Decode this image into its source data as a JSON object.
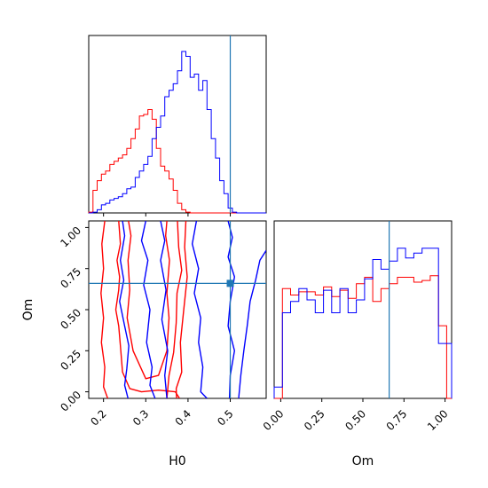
{
  "chart_data": {
    "type": "corner",
    "parameters": [
      "H0",
      "Om"
    ],
    "truth": {
      "H0": 0.5,
      "Om": 0.66
    },
    "colors": {
      "series_a": "#ff0000",
      "series_b": "#0000ff",
      "truth": "#1f77b4"
    },
    "grid": false,
    "legend": "none",
    "panels": [
      {
        "id": "hist-h0",
        "type": "histogram",
        "parameter": "H0",
        "xlim": [
          0.165,
          0.585
        ],
        "xticks": [
          0.2,
          0.3,
          0.4,
          0.5
        ],
        "show_tick_labels": false,
        "edges": [
          0.165,
          0.175,
          0.185,
          0.195,
          0.205,
          0.215,
          0.225,
          0.235,
          0.245,
          0.255,
          0.265,
          0.275,
          0.285,
          0.295,
          0.305,
          0.315,
          0.325,
          0.335,
          0.345,
          0.355,
          0.365,
          0.375,
          0.385,
          0.395,
          0.405,
          0.415,
          0.425,
          0.435,
          0.445,
          0.455,
          0.465,
          0.475,
          0.485,
          0.495,
          0.505,
          0.515,
          0.525,
          0.535,
          0.545,
          0.555,
          0.565,
          0.575,
          0.585
        ],
        "series": [
          {
            "color": "#ff0000",
            "counts": [
              0.005,
              0.14,
              0.2,
              0.24,
              0.26,
              0.3,
              0.32,
              0.34,
              0.36,
              0.4,
              0.46,
              0.52,
              0.6,
              0.61,
              0.64,
              0.58,
              0.4,
              0.29,
              0.26,
              0.21,
              0.14,
              0.06,
              0.02,
              0.005,
              0,
              0,
              0,
              0,
              0,
              0,
              0,
              0,
              0,
              0,
              0,
              0,
              0,
              0,
              0,
              0,
              0,
              0
            ]
          },
          {
            "color": "#0000ff",
            "counts": [
              0,
              0.005,
              0.02,
              0.05,
              0.06,
              0.08,
              0.09,
              0.1,
              0.12,
              0.15,
              0.16,
              0.22,
              0.26,
              0.3,
              0.35,
              0.46,
              0.53,
              0.6,
              0.72,
              0.76,
              0.8,
              0.88,
              1.0,
              0.97,
              0.84,
              0.86,
              0.76,
              0.82,
              0.64,
              0.46,
              0.34,
              0.2,
              0.12,
              0.03,
              0.005,
              0,
              0,
              0,
              0,
              0,
              0,
              0
            ]
          }
        ],
        "ymax": 1.0,
        "truth_x": 0.5
      },
      {
        "id": "contour-om-vs-h0",
        "type": "contour",
        "x_parameter": "H0",
        "y_parameter": "Om",
        "xlim": [
          0.165,
          0.585
        ],
        "ylim": [
          -0.04,
          1.04
        ],
        "xticks": [
          "0.2",
          "0.3",
          "0.4",
          "0.5"
        ],
        "yticks": [
          "0.00",
          "0.25",
          "0.50",
          "0.75",
          "1.00"
        ],
        "xlabel": "H0",
        "ylabel": "Om",
        "truth_point": [
          0.5,
          0.66
        ],
        "series": [
          {
            "color": "#ff0000",
            "contours": [
              [
                [
                  0.203,
                  1.04
                ],
                [
                  0.196,
                  0.9
                ],
                [
                  0.2,
                  0.75
                ],
                [
                  0.194,
                  0.6
                ],
                [
                  0.2,
                  0.45
                ],
                [
                  0.195,
                  0.3
                ],
                [
                  0.203,
                  0.15
                ],
                [
                  0.2,
                  0.03
                ],
                [
                  0.21,
                  -0.04
                ]
              ],
              [
                [
                  0.236,
                  1.04
                ],
                [
                  0.24,
                  0.9
                ],
                [
                  0.232,
                  0.8
                ],
                [
                  0.238,
                  0.7
                ],
                [
                  0.236,
                  0.62
                ],
                [
                  0.229,
                  0.5
                ],
                [
                  0.236,
                  0.4
                ],
                [
                  0.24,
                  0.28
                ],
                [
                  0.245,
                  0.12
                ],
                [
                  0.262,
                  0.02
                ],
                [
                  0.29,
                  0.0
                ],
                [
                  0.33,
                  0.01
                ],
                [
                  0.37,
                  0.0
                ],
                [
                  0.38,
                  -0.04
                ]
              ],
              [
                [
                  0.259,
                  1.04
                ],
                [
                  0.265,
                  0.95
                ],
                [
                  0.258,
                  0.8
                ],
                [
                  0.262,
                  0.62
                ],
                [
                  0.256,
                  0.45
                ],
                [
                  0.27,
                  0.25
                ],
                [
                  0.3,
                  0.08
                ],
                [
                  0.33,
                  0.1
                ],
                [
                  0.35,
                  0.25
                ],
                [
                  0.355,
                  0.45
                ],
                [
                  0.35,
                  0.6
                ],
                [
                  0.356,
                  0.8
                ],
                [
                  0.347,
                  0.95
                ],
                [
                  0.35,
                  1.04
                ]
              ],
              [
                [
                  0.375,
                  1.04
                ],
                [
                  0.378,
                  0.88
                ],
                [
                  0.385,
                  0.74
                ],
                [
                  0.374,
                  0.6
                ],
                [
                  0.372,
                  0.42
                ],
                [
                  0.366,
                  0.24
                ],
                [
                  0.355,
                  0.1
                ],
                [
                  0.35,
                  -0.04
                ]
              ],
              [
                [
                  0.395,
                  1.04
                ],
                [
                  0.392,
                  0.88
                ],
                [
                  0.398,
                  0.7
                ],
                [
                  0.39,
                  0.5
                ],
                [
                  0.382,
                  0.3
                ],
                [
                  0.385,
                  0.12
                ],
                [
                  0.372,
                  0.02
                ],
                [
                  0.373,
                  -0.04
                ]
              ]
            ]
          },
          {
            "color": "#0000ff",
            "contours": [
              [
                [
                  0.245,
                  1.04
                ],
                [
                  0.25,
                  0.95
                ],
                [
                  0.24,
                  0.8
                ],
                [
                  0.248,
                  0.68
                ],
                [
                  0.238,
                  0.55
                ],
                [
                  0.25,
                  0.4
                ],
                [
                  0.26,
                  0.28
                ],
                [
                  0.255,
                  0.14
                ],
                [
                  0.25,
                  0.04
                ],
                [
                  0.258,
                  -0.04
                ]
              ],
              [
                [
                  0.3,
                  1.04
                ],
                [
                  0.29,
                  0.92
                ],
                [
                  0.305,
                  0.8
                ],
                [
                  0.295,
                  0.65
                ],
                [
                  0.31,
                  0.5
                ],
                [
                  0.302,
                  0.3
                ],
                [
                  0.315,
                  0.15
                ],
                [
                  0.31,
                  0.04
                ],
                [
                  0.322,
                  -0.04
                ]
              ],
              [
                [
                  0.335,
                  1.04
                ],
                [
                  0.345,
                  0.92
                ],
                [
                  0.335,
                  0.8
                ],
                [
                  0.348,
                  0.62
                ],
                [
                  0.338,
                  0.44
                ],
                [
                  0.352,
                  0.25
                ],
                [
                  0.345,
                  0.1
                ],
                [
                  0.35,
                  -0.04
                ]
              ],
              [
                [
                  0.42,
                  1.04
                ],
                [
                  0.41,
                  0.9
                ],
                [
                  0.425,
                  0.75
                ],
                [
                  0.415,
                  0.6
                ],
                [
                  0.43,
                  0.45
                ],
                [
                  0.425,
                  0.3
                ],
                [
                  0.435,
                  0.15
                ],
                [
                  0.43,
                  0.0
                ],
                [
                  0.445,
                  -0.04
                ]
              ],
              [
                [
                  0.495,
                  1.04
                ],
                [
                  0.505,
                  0.94
                ],
                [
                  0.495,
                  0.82
                ],
                [
                  0.51,
                  0.7
                ],
                [
                  0.5,
                  0.55
                ],
                [
                  0.495,
                  0.4
                ],
                [
                  0.51,
                  0.25
                ],
                [
                  0.5,
                  0.1
                ],
                [
                  0.498,
                  -0.04
                ]
              ],
              [
                [
                  0.585,
                  0.86
                ],
                [
                  0.57,
                  0.8
                ],
                [
                  0.56,
                  0.68
                ],
                [
                  0.547,
                  0.55
                ],
                [
                  0.54,
                  0.4
                ],
                [
                  0.532,
                  0.25
                ],
                [
                  0.525,
                  0.1
                ],
                [
                  0.52,
                  -0.04
                ]
              ]
            ]
          }
        ]
      },
      {
        "id": "hist-om",
        "type": "histogram",
        "parameter": "Om",
        "xlim": [
          -0.04,
          1.04
        ],
        "xticks": [
          "0.00",
          "0.25",
          "0.50",
          "0.75",
          "1.00"
        ],
        "xlabel": "Om",
        "show_tick_labels": true,
        "edges": [
          -0.04,
          0.01,
          0.06,
          0.11,
          0.16,
          0.21,
          0.26,
          0.31,
          0.36,
          0.41,
          0.46,
          0.51,
          0.56,
          0.61,
          0.66,
          0.71,
          0.76,
          0.81,
          0.86,
          0.91,
          0.96,
          1.01,
          1.04
        ],
        "series": [
          {
            "color": "#ff0000",
            "counts": [
              0,
              0.68,
              0.64,
              0.66,
              0.66,
              0.64,
              0.69,
              0.63,
              0.67,
              0.62,
              0.71,
              0.75,
              0.6,
              0.68,
              0.71,
              0.75,
              0.75,
              0.72,
              0.73,
              0.76,
              0.45,
              0
            ]
          },
          {
            "color": "#0000ff",
            "counts": [
              0.07,
              0.53,
              0.6,
              0.68,
              0.61,
              0.53,
              0.67,
              0.53,
              0.68,
              0.53,
              0.61,
              0.74,
              0.86,
              0.8,
              0.85,
              0.93,
              0.87,
              0.9,
              0.93,
              0.93,
              0.34,
              0.34
            ]
          }
        ],
        "ymax": 1.0,
        "truth_x": 0.66
      }
    ]
  }
}
